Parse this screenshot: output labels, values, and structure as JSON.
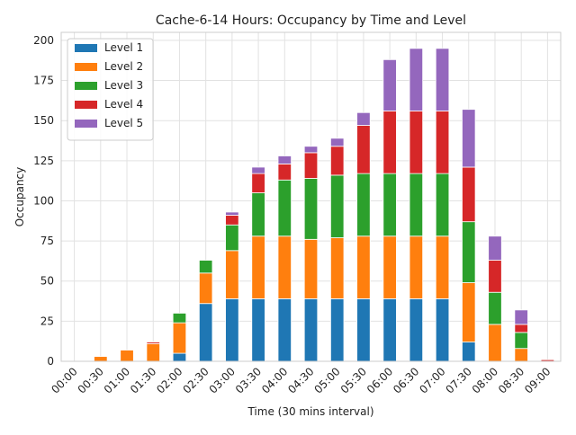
{
  "chart_data": {
    "type": "bar",
    "stacked": true,
    "title": "Cache-6-14 Hours: Occupancy by Time and Level",
    "xlabel": "Time (30 mins interval)",
    "ylabel": "Occupancy",
    "ylim": [
      0,
      205
    ],
    "yticks": [
      0,
      25,
      50,
      75,
      100,
      125,
      150,
      175,
      200
    ],
    "grid": true,
    "legend_position": "top-left",
    "categories": [
      "00:00",
      "00:30",
      "01:00",
      "01:30",
      "02:00",
      "02:30",
      "03:00",
      "03:30",
      "04:00",
      "04:30",
      "05:00",
      "05:30",
      "06:00",
      "06:30",
      "07:00",
      "07:30",
      "08:00",
      "08:30",
      "09:00"
    ],
    "series": [
      {
        "name": "Level 1",
        "color": "#1f77b4",
        "values": [
          0,
          0,
          0,
          0,
          5,
          36,
          39,
          39,
          39,
          39,
          39,
          39,
          39,
          39,
          39,
          12,
          0,
          0,
          0
        ]
      },
      {
        "name": "Level 2",
        "color": "#ff7f0e",
        "values": [
          0,
          3,
          7,
          11,
          19,
          19,
          30,
          39,
          39,
          37,
          38,
          39,
          39,
          39,
          39,
          37,
          23,
          8,
          0
        ]
      },
      {
        "name": "Level 3",
        "color": "#2ca02c",
        "values": [
          0,
          0,
          0,
          0,
          6,
          8,
          16,
          27,
          35,
          38,
          39,
          39,
          39,
          39,
          39,
          38,
          20,
          10,
          0
        ]
      },
      {
        "name": "Level 4",
        "color": "#d62728",
        "values": [
          0,
          0,
          0,
          1,
          0,
          0,
          6,
          12,
          10,
          16,
          18,
          30,
          39,
          39,
          39,
          34,
          20,
          5,
          1
        ]
      },
      {
        "name": "Level 5",
        "color": "#9467bd",
        "values": [
          0,
          0,
          0,
          0,
          0,
          0,
          2,
          4,
          5,
          4,
          5,
          8,
          32,
          39,
          39,
          36,
          15,
          9,
          0
        ]
      }
    ]
  }
}
